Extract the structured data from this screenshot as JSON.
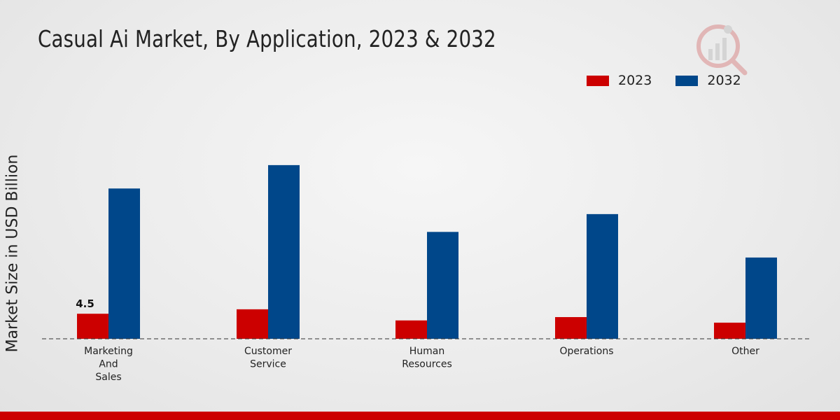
{
  "chart_data": {
    "type": "bar",
    "title": "Casual Ai Market, By Application, 2023 & 2032",
    "xlabel": "",
    "ylabel": "Market Size in USD Billion",
    "categories": [
      [
        "Marketing",
        "And",
        "Sales"
      ],
      [
        "Customer",
        "Service"
      ],
      [
        "Human",
        "Resources"
      ],
      [
        "Operations"
      ],
      [
        "Other"
      ]
    ],
    "series": [
      {
        "name": "2023",
        "color": "#cc0000",
        "values": [
          4.5,
          5.3,
          3.3,
          3.9,
          2.9
        ]
      },
      {
        "name": "2032",
        "color": "#00478a",
        "values": [
          27.0,
          31.2,
          19.2,
          22.4,
          14.6
        ]
      }
    ],
    "data_labels": [
      {
        "series": 0,
        "index": 0,
        "text": "4.5"
      }
    ],
    "ylim": [
      0,
      42
    ],
    "grid": false,
    "legend_position": "top-right"
  }
}
